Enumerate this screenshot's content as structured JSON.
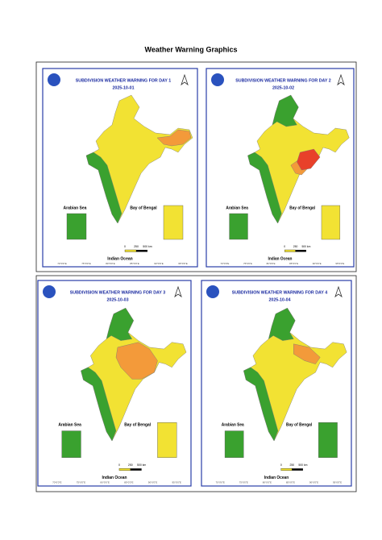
{
  "header": {
    "title": "Weather Warning Graphics"
  },
  "panels": [
    {
      "title": "SUBDIVISION WEATHER WARNING FOR DAY 1",
      "date": "2025-10-01"
    },
    {
      "title": "SUBDIVISION WEATHER WARNING FOR DAY 2",
      "date": "2025-10-02"
    },
    {
      "title": "SUBDIVISION WEATHER WARNING FOR DAY 3",
      "date": "2025-10-03"
    },
    {
      "title": "SUBDIVISION WEATHER WARNING FOR DAY 4",
      "date": "2025-10-04"
    }
  ],
  "map_labels": {
    "arabian_sea": "Arabian Sea",
    "bay_of_bengal": "Bay of Bengal",
    "indian_ocean": "Indian Ocean",
    "scale": [
      "0",
      "250",
      "500 km"
    ],
    "longitudes": [
      "70°0'0\"E",
      "75°0'0\"E",
      "80°0'0\"E",
      "85°0'0\"E",
      "90°0'0\"E",
      "95°0'0\"E"
    ]
  }
}
